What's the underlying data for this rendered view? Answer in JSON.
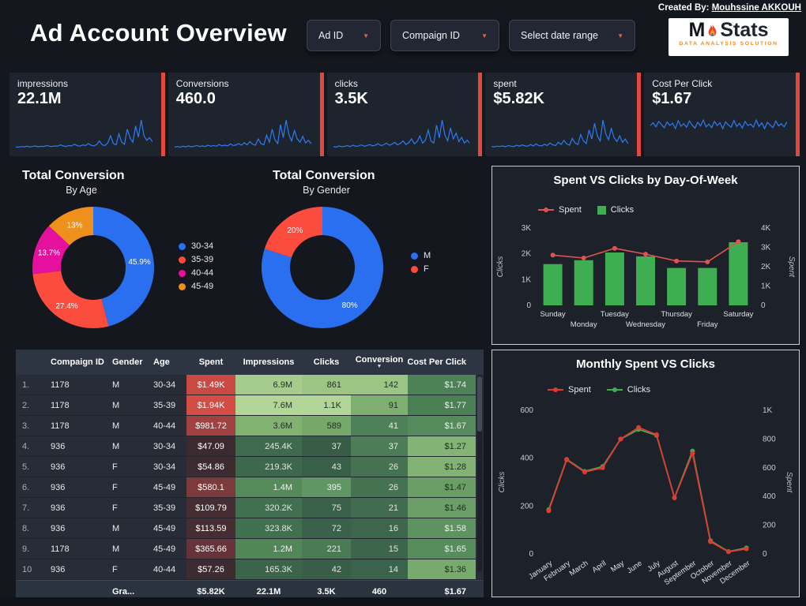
{
  "colors": {
    "spark": "#2d7bf4",
    "accent_strip": "#e2483c"
  },
  "icons": {
    "dropdown_caret": "▼",
    "sort_caret": "▼"
  },
  "header": {
    "title": "Ad Account Overview",
    "created_by_label": "Created By:",
    "created_by_name": "Mouhssine AKKOUH",
    "filters": [
      {
        "label": "Ad ID"
      },
      {
        "label": "Compaign ID"
      },
      {
        "label": "Select date range"
      }
    ],
    "logo": {
      "m": "M",
      "stats": "Stats",
      "subtitle": "DATA ANALYSIS SOLUTION"
    }
  },
  "kpis": [
    {
      "label": "impressions",
      "value": "22.1M",
      "spark": [
        6,
        5,
        7,
        6,
        8,
        6,
        7,
        9,
        6,
        8,
        7,
        10,
        8,
        7,
        9,
        8,
        12,
        9,
        7,
        10,
        9,
        14,
        10,
        8,
        12,
        10,
        16,
        11,
        9,
        13,
        24,
        12,
        10,
        18,
        40,
        16,
        12,
        46,
        20,
        14,
        60,
        34,
        20,
        70,
        36,
        88,
        40,
        26,
        34,
        22
      ]
    },
    {
      "label": "Conversions",
      "value": "460.0",
      "spark": [
        5,
        7,
        5,
        8,
        6,
        9,
        6,
        8,
        10,
        7,
        9,
        7,
        11,
        8,
        10,
        8,
        13,
        9,
        11,
        9,
        15,
        10,
        12,
        16,
        11,
        19,
        12,
        22,
        14,
        11,
        30,
        16,
        12,
        42,
        20,
        60,
        28,
        16,
        74,
        34,
        88,
        44,
        24,
        56,
        30,
        20,
        38,
        18,
        26,
        16
      ]
    },
    {
      "label": "clicks",
      "value": "3.5K",
      "spark": [
        6,
        5,
        8,
        6,
        7,
        9,
        6,
        10,
        7,
        8,
        11,
        7,
        9,
        12,
        8,
        10,
        14,
        9,
        11,
        16,
        10,
        13,
        18,
        11,
        15,
        22,
        12,
        17,
        28,
        14,
        20,
        36,
        16,
        24,
        52,
        22,
        16,
        66,
        30,
        80,
        38,
        22,
        58,
        28,
        44,
        20,
        32,
        16,
        24,
        14
      ]
    },
    {
      "label": "spent",
      "value": "$5.82K",
      "spark": [
        7,
        6,
        8,
        7,
        9,
        6,
        10,
        8,
        7,
        11,
        8,
        12,
        9,
        8,
        13,
        9,
        15,
        10,
        9,
        14,
        10,
        18,
        12,
        10,
        20,
        13,
        26,
        15,
        11,
        32,
        18,
        13,
        44,
        24,
        16,
        58,
        30,
        78,
        40,
        24,
        88,
        46,
        28,
        62,
        34,
        22,
        40,
        20,
        30,
        16
      ]
    },
    {
      "label": "Cost Per Click",
      "value": "$1.67",
      "spark": [
        52,
        58,
        49,
        61,
        54,
        47,
        60,
        52,
        57,
        45,
        63,
        50,
        56,
        48,
        62,
        53,
        46,
        59,
        51,
        64,
        49,
        55,
        47,
        61,
        52,
        58,
        45,
        60,
        53,
        48,
        63,
        50,
        57,
        46,
        61,
        52,
        55,
        48,
        64,
        50,
        58,
        45,
        59,
        53,
        47,
        62,
        51,
        56,
        49,
        60
      ]
    }
  ],
  "chart_data": [
    {
      "id": "age-donut",
      "type": "pie",
      "title": "Total Conversion",
      "subtitle": "By Age",
      "labels": [
        "30-34",
        "35-39",
        "40-44",
        "45-49"
      ],
      "values": [
        45.9,
        27.4,
        13.7,
        13.0
      ],
      "slice_labels": [
        "45.9%",
        "27.4%",
        "13.7%",
        "13%"
      ],
      "colors": [
        "#2a6ff0",
        "#fb4c3e",
        "#e5119e",
        "#ef8f1c"
      ],
      "legend_position": "right"
    },
    {
      "id": "gender-donut",
      "type": "pie",
      "title": "Total Conversion",
      "subtitle": "By Gender",
      "labels": [
        "M",
        "F"
      ],
      "values": [
        80,
        20
      ],
      "slice_labels": [
        "80%",
        "20%"
      ],
      "colors": [
        "#2a6ff0",
        "#fb4c3e"
      ],
      "legend_position": "right"
    },
    {
      "id": "dow-combo",
      "type": "bar+line",
      "title": "Spent VS Clicks by Day-Of-Week",
      "categories": [
        "Sunday",
        "Monday",
        "Tuesday",
        "Wednesday",
        "Thursday",
        "Friday",
        "Saturday"
      ],
      "series": [
        {
          "name": "Spent",
          "type": "line",
          "axis": "right",
          "color": "#e2534d",
          "values": [
            2600,
            2450,
            2950,
            2650,
            2300,
            2250,
            3300
          ]
        },
        {
          "name": "Clicks",
          "type": "bar",
          "axis": "left",
          "color": "#3fae52",
          "values": [
            1600,
            1750,
            2050,
            1900,
            1450,
            1450,
            2450
          ]
        }
      ],
      "left_axis": {
        "label": "Clicks",
        "min": 0,
        "max": 3000,
        "ticks": [
          "0",
          "1K",
          "2K",
          "3K"
        ]
      },
      "right_axis": {
        "label": "Spent",
        "min": 0,
        "max": 4000,
        "ticks": [
          "0",
          "1K",
          "2K",
          "3K",
          "4K"
        ]
      },
      "legend_position": "top"
    },
    {
      "id": "monthly-lines",
      "type": "line",
      "title": "Monthly Spent VS Clicks",
      "categories": [
        "January",
        "February",
        "March",
        "April",
        "May",
        "June",
        "July",
        "August",
        "September",
        "October",
        "November",
        "December"
      ],
      "series": [
        {
          "name": "Spent",
          "type": "line",
          "axis": "right",
          "color": "#e23a33",
          "values": [
            300,
            655,
            570,
            600,
            800,
            880,
            830,
            390,
            700,
            85,
            15,
            35
          ]
        },
        {
          "name": "Clicks",
          "type": "line",
          "axis": "left",
          "color": "#3fae52",
          "values": [
            185,
            395,
            345,
            365,
            480,
            520,
            495,
            235,
            430,
            55,
            10,
            25
          ]
        }
      ],
      "left_axis": {
        "label": "Clicks",
        "min": 0,
        "max": 600,
        "ticks": [
          "0",
          "200",
          "400",
          "600"
        ]
      },
      "right_axis": {
        "label": "Spent",
        "min": 0,
        "max": 1000,
        "ticks": [
          "0",
          "200",
          "400",
          "600",
          "800",
          "1K"
        ]
      },
      "legend_position": "top"
    }
  ],
  "table": {
    "columns": [
      "Compaign ID",
      "Gender",
      "Age",
      "Spent",
      "Impressions",
      "Clicks",
      "Conversion",
      "Cost Per Click"
    ],
    "sort_column": "Conversion",
    "rows": [
      [
        "1.",
        "1178",
        "M",
        "30-34",
        [
          "$1.49K",
          "#c84a43",
          "#ffffff"
        ],
        [
          "6.9M",
          "#a6cc8d",
          "#223122"
        ],
        [
          "861",
          "#9cc584",
          "#223122"
        ],
        [
          "142",
          "#9cc584",
          "#223122"
        ],
        [
          "$1.74",
          "#4d8156",
          "#e9f1e9"
        ]
      ],
      [
        "2.",
        "1178",
        "M",
        "35-39",
        [
          "$1.94K",
          "#d44d44",
          "#ffffff"
        ],
        [
          "7.6M",
          "#b2d697",
          "#223122"
        ],
        [
          "1.1K",
          "#b2d697",
          "#223122"
        ],
        [
          "91",
          "#7fae71",
          "#223122"
        ],
        [
          "$1.77",
          "#4b7f54",
          "#e9f1e9"
        ]
      ],
      [
        "3.",
        "1178",
        "M",
        "40-44",
        [
          "$981.72",
          "#a14141",
          "#ffffff"
        ],
        [
          "3.6M",
          "#81b271",
          "#223122"
        ],
        [
          "589",
          "#76a86a",
          "#223122"
        ],
        [
          "41",
          "#4f8158",
          "#e9f1e9"
        ],
        [
          "$1.67",
          "#548a5c",
          "#e9f1e9"
        ]
      ],
      [
        "4.",
        "936",
        "M",
        "30-34",
        [
          "$47.09",
          "#3d2a31",
          "#ffffff"
        ],
        [
          "245.4K",
          "#3e6a4e",
          "#dfe8df"
        ],
        [
          "37",
          "#375d47",
          "#dfe8df"
        ],
        [
          "37",
          "#4c7d56",
          "#e9f1e9"
        ],
        [
          "$1.27",
          "#83b475",
          "#1d2f20"
        ]
      ],
      [
        "5.",
        "936",
        "F",
        "30-34",
        [
          "$54.86",
          "#3e2b31",
          "#ffffff"
        ],
        [
          "219.3K",
          "#3d684d",
          "#dfe8df"
        ],
        [
          "43",
          "#385f48",
          "#dfe8df"
        ],
        [
          "26",
          "#457251",
          "#dfe8df"
        ],
        [
          "$1.28",
          "#82b374",
          "#1d2f20"
        ]
      ],
      [
        "6.",
        "936",
        "F",
        "45-49",
        [
          "$580.1",
          "#7d3a3d",
          "#ffffff"
        ],
        [
          "1.4M",
          "#558a5b",
          "#eef4ee"
        ],
        [
          "395",
          "#5f9663",
          "#eef4ee"
        ],
        [
          "26",
          "#457251",
          "#dfe8df"
        ],
        [
          "$1.47",
          "#6b9e66",
          "#1d2f20"
        ]
      ],
      [
        "7.",
        "936",
        "F",
        "35-39",
        [
          "$109.79",
          "#452d33",
          "#ffffff"
        ],
        [
          "320.2K",
          "#40704f",
          "#dfe8df"
        ],
        [
          "75",
          "#3a624a",
          "#dfe8df"
        ],
        [
          "21",
          "#416c4f",
          "#dfe8df"
        ],
        [
          "$1.46",
          "#6c9f67",
          "#1d2f20"
        ]
      ],
      [
        "8.",
        "936",
        "M",
        "45-49",
        [
          "$113.59",
          "#462d33",
          "#ffffff"
        ],
        [
          "323.8K",
          "#417050",
          "#dfe8df"
        ],
        [
          "72",
          "#3a614a",
          "#dfe8df"
        ],
        [
          "16",
          "#3d664c",
          "#dfe8df"
        ],
        [
          "$1.58",
          "#5e9260",
          "#e9f1e9"
        ]
      ],
      [
        "9.",
        "1178",
        "M",
        "45-49",
        [
          "$365.66",
          "#66333a",
          "#ffffff"
        ],
        [
          "1.2M",
          "#528659",
          "#eef4ee"
        ],
        [
          "221",
          "#4b7b55",
          "#dfe8df"
        ],
        [
          "15",
          "#3c654b",
          "#dfe8df"
        ],
        [
          "$1.65",
          "#578c5d",
          "#e9f1e9"
        ]
      ],
      [
        "10",
        "936",
        "F",
        "40-44",
        [
          "$57.26",
          "#3e2b31",
          "#ffffff"
        ],
        [
          "165.3K",
          "#3b644b",
          "#dfe8df"
        ],
        [
          "42",
          "#385e48",
          "#dfe8df"
        ],
        [
          "14",
          "#3b634b",
          "#dfe8df"
        ],
        [
          "$1.36",
          "#78aa6e",
          "#1d2f20"
        ]
      ]
    ],
    "total": {
      "label": "Gra...",
      "spent": "$5.82K",
      "impressions": "22.1M",
      "clicks": "3.5K",
      "conversion": "460",
      "cpc": "$1.67"
    }
  }
}
